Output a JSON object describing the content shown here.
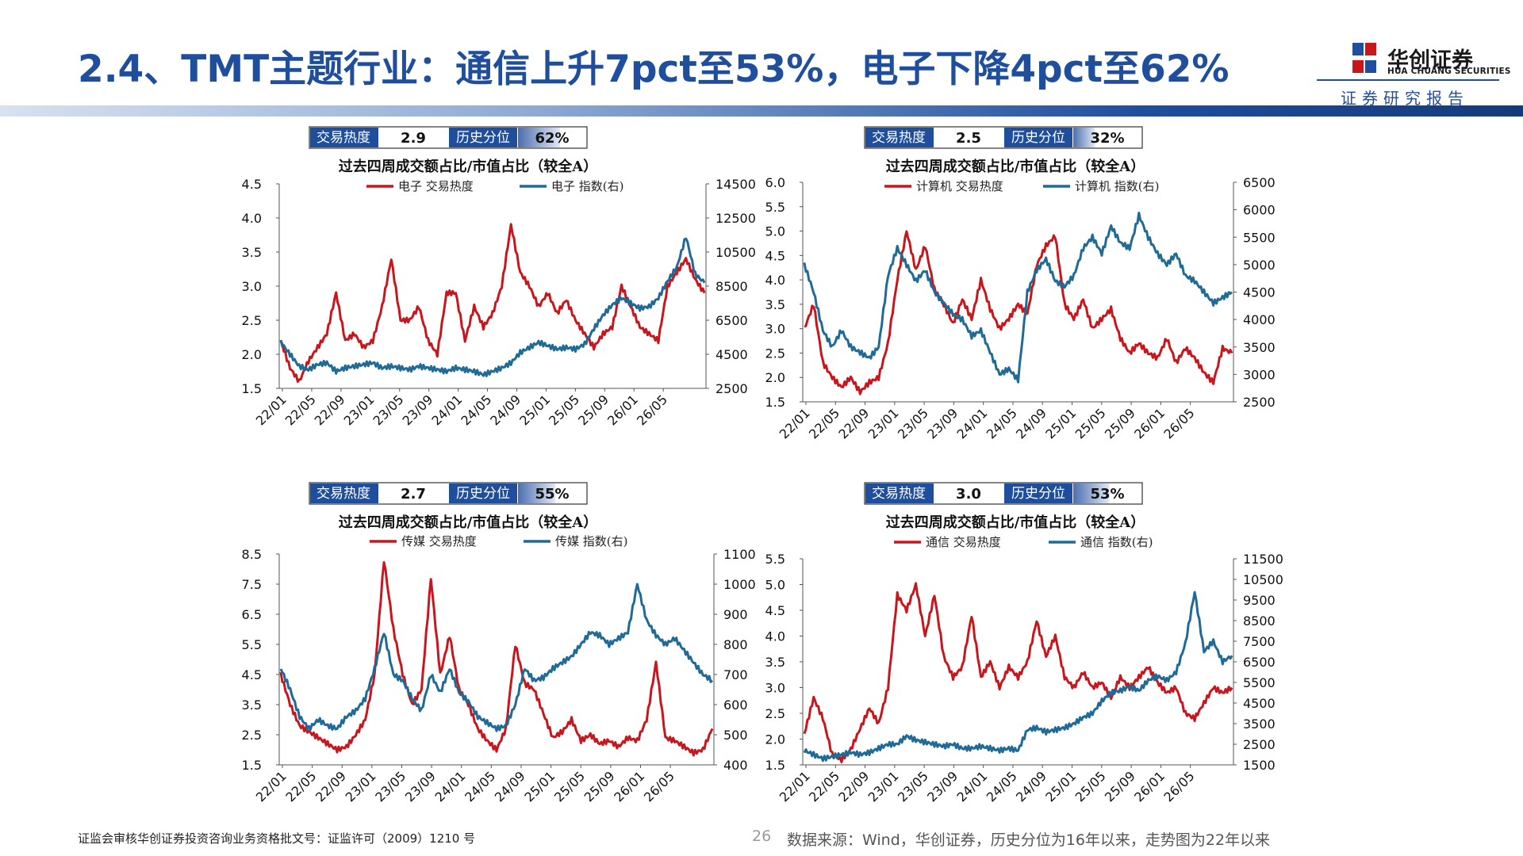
{
  "title": "2.4、TMT主题行业：通信上升7pct至53%，电子下降4pct至62%",
  "brand": {
    "name_cn": "华创证券",
    "name_en": "HUA CHUANG SECURITIES",
    "tagline": "证券研究报告",
    "colors": {
      "primary": "#1f4e9c",
      "accent": "#c8161d"
    }
  },
  "footer": {
    "license": "证监会审核华创证券投资咨询业务资格批文号：证监许可（2009）1210 号",
    "page": "26",
    "source": "数据来源：Wind，华创证券，历史分位为16年以来，走势图为22年以来"
  },
  "colors": {
    "heat_line": "#c8161d",
    "index_line": "#1f6a96",
    "info_box_bg": "#1f4e9c"
  },
  "chart_data": [
    {
      "type": "line",
      "info": {
        "heat_label": "交易热度",
        "heat_value": "2.9",
        "pct_label": "历史分位",
        "pct_value": "62%",
        "pct_fraction": 0.62
      },
      "title": "过去四周成交额占比/市值占比（较全A）",
      "x_ticks": [
        "22/01",
        "22/05",
        "22/09",
        "23/01",
        "23/05",
        "23/09",
        "24/01",
        "24/05",
        "24/09",
        "25/01",
        "25/05",
        "25/09",
        "26/01",
        "26/05"
      ],
      "y_left": {
        "min": 1.5,
        "max": 4.5,
        "ticks": [
          "1.5",
          "2.0",
          "2.5",
          "3.0",
          "3.5",
          "4.0",
          "4.5"
        ]
      },
      "y_right": {
        "min": 2500,
        "max": 14500,
        "ticks": [
          "2500",
          "4500",
          "6500",
          "8500",
          "10500",
          "12500",
          "14500"
        ]
      },
      "series": [
        {
          "name": "电子 交易热度",
          "axis": "left",
          "color": "#c8161d",
          "values": [
            2.2,
            1.8,
            1.6,
            1.9,
            2.1,
            2.3,
            2.9,
            2.2,
            2.3,
            2.1,
            2.2,
            2.7,
            3.4,
            2.5,
            2.5,
            2.7,
            2.2,
            2.0,
            2.9,
            2.9,
            2.2,
            2.7,
            2.4,
            2.6,
            3.0,
            3.9,
            3.2,
            3.0,
            2.7,
            2.9,
            2.6,
            2.8,
            2.5,
            2.3,
            2.1,
            2.3,
            2.4,
            3.0,
            2.7,
            2.4,
            2.3,
            2.2,
            3.0,
            3.2,
            3.4,
            3.1,
            2.9
          ]
        },
        {
          "name": "电子 指数(右)",
          "axis": "right",
          "color": "#1f6a96",
          "values": [
            5200,
            4500,
            3800,
            3600,
            3900,
            4000,
            3500,
            3700,
            3800,
            3900,
            4000,
            3700,
            3800,
            3700,
            3600,
            3800,
            3700,
            3600,
            3500,
            3700,
            3600,
            3500,
            3300,
            3500,
            3700,
            4000,
            4600,
            4900,
            5200,
            5000,
            4800,
            4900,
            4800,
            5100,
            6000,
            6800,
            7400,
            7800,
            7500,
            7200,
            7300,
            7800,
            8800,
            9600,
            11400,
            9200,
            8700
          ]
        }
      ]
    },
    {
      "type": "line",
      "info": {
        "heat_label": "交易热度",
        "heat_value": "2.5",
        "pct_label": "历史分位",
        "pct_value": "32%",
        "pct_fraction": 0.32
      },
      "title": "过去四周成交额占比/市值占比（较全A）",
      "x_ticks": [
        "22/01",
        "22/05",
        "22/09",
        "23/01",
        "23/05",
        "23/09",
        "24/01",
        "24/05",
        "24/09",
        "25/01",
        "25/05",
        "25/09",
        "26/01",
        "26/05"
      ],
      "y_left": {
        "min": 1.5,
        "max": 6.0,
        "ticks": [
          "1.5",
          "2.0",
          "2.5",
          "3.0",
          "3.5",
          "4.0",
          "4.5",
          "5.0",
          "5.5",
          "6.0"
        ]
      },
      "y_right": {
        "min": 2500,
        "max": 6500,
        "ticks": [
          "2500",
          "3000",
          "3500",
          "4000",
          "4500",
          "5000",
          "5500",
          "6000",
          "6500"
        ]
      },
      "series": [
        {
          "name": "计算机 交易热度",
          "axis": "left",
          "color": "#c8161d",
          "values": [
            3.0,
            3.5,
            2.3,
            2.0,
            1.8,
            2.0,
            1.7,
            1.9,
            2.0,
            2.7,
            4.0,
            5.0,
            4.2,
            4.7,
            3.8,
            3.5,
            3.1,
            3.6,
            3.2,
            4.0,
            3.4,
            3.0,
            3.2,
            3.5,
            3.3,
            4.3,
            4.7,
            4.9,
            3.5,
            3.2,
            3.6,
            3.0,
            3.2,
            3.4,
            2.8,
            2.5,
            2.7,
            2.5,
            2.4,
            2.8,
            2.3,
            2.6,
            2.4,
            2.1,
            1.9,
            2.6,
            2.5
          ]
        },
        {
          "name": "计算机 指数(右)",
          "axis": "right",
          "color": "#1f6a96",
          "values": [
            5000,
            4500,
            3800,
            3500,
            3800,
            3500,
            3400,
            3300,
            3500,
            4800,
            5300,
            5000,
            4700,
            4900,
            4500,
            4300,
            4100,
            4000,
            3700,
            3800,
            3400,
            3000,
            3100,
            2900,
            4500,
            4900,
            5100,
            4700,
            4600,
            4800,
            5300,
            5500,
            5200,
            5700,
            5400,
            5300,
            5900,
            5500,
            5200,
            5000,
            5200,
            4800,
            4700,
            4500,
            4300,
            4400,
            4500
          ]
        }
      ]
    },
    {
      "type": "line",
      "info": {
        "heat_label": "交易热度",
        "heat_value": "2.7",
        "pct_label": "历史分位",
        "pct_value": "55%",
        "pct_fraction": 0.55
      },
      "title": "过去四周成交额占比/市值占比（较全A）",
      "x_ticks": [
        "22/01",
        "22/05",
        "22/09",
        "23/01",
        "23/05",
        "23/09",
        "24/01",
        "24/05",
        "24/09",
        "25/01",
        "25/05",
        "25/09",
        "26/01",
        "26/05"
      ],
      "y_left": {
        "min": 1.5,
        "max": 8.5,
        "ticks": [
          "1.5",
          "2.5",
          "3.5",
          "4.5",
          "5.5",
          "6.5",
          "7.5",
          "8.5"
        ]
      },
      "y_right": {
        "min": 400,
        "max": 1100,
        "ticks": [
          "400",
          "500",
          "600",
          "700",
          "800",
          "900",
          "1000",
          "1100"
        ]
      },
      "series": [
        {
          "name": "传媒 交易热度",
          "axis": "left",
          "color": "#c8161d",
          "values": [
            4.5,
            3.5,
            2.8,
            2.6,
            2.4,
            2.2,
            2.0,
            2.1,
            2.5,
            3.0,
            4.5,
            8.3,
            6.0,
            4.5,
            3.5,
            4.0,
            7.7,
            4.5,
            5.8,
            4.0,
            3.5,
            2.7,
            2.3,
            2.0,
            2.7,
            5.5,
            4.2,
            4.0,
            3.2,
            2.4,
            2.6,
            3.0,
            2.3,
            2.5,
            2.2,
            2.3,
            2.1,
            2.4,
            2.3,
            3.0,
            4.9,
            2.4,
            2.3,
            2.1,
            1.9,
            2.0,
            2.7
          ]
        },
        {
          "name": "传媒 指数(右)",
          "axis": "right",
          "color": "#1f6a96",
          "values": [
            720,
            650,
            560,
            520,
            550,
            530,
            520,
            560,
            580,
            620,
            720,
            840,
            700,
            680,
            620,
            580,
            700,
            640,
            720,
            640,
            610,
            560,
            540,
            520,
            530,
            600,
            720,
            680,
            690,
            720,
            740,
            760,
            800,
            840,
            830,
            800,
            820,
            840,
            1000,
            880,
            830,
            800,
            820,
            780,
            740,
            700,
            680
          ]
        }
      ]
    },
    {
      "type": "line",
      "info": {
        "heat_label": "交易热度",
        "heat_value": "3.0",
        "pct_label": "历史分位",
        "pct_value": "53%",
        "pct_fraction": 0.53
      },
      "title": "过去四周成交额占比/市值占比（较全A）",
      "x_ticks": [
        "22/01",
        "22/05",
        "22/09",
        "23/01",
        "23/05",
        "23/09",
        "24/01",
        "24/05",
        "24/09",
        "25/01",
        "25/05",
        "25/09",
        "26/01",
        "26/05"
      ],
      "y_left": {
        "min": 1.5,
        "max": 5.5,
        "ticks": [
          "1.5",
          "2.0",
          "2.5",
          "3.0",
          "3.5",
          "4.0",
          "4.5",
          "5.0",
          "5.5"
        ]
      },
      "y_right": {
        "min": 1500,
        "max": 11500,
        "ticks": [
          "1500",
          "2500",
          "3500",
          "4500",
          "5500",
          "6500",
          "7500",
          "8500",
          "9500",
          "10500",
          "11500"
        ]
      },
      "series": [
        {
          "name": "通信 交易热度",
          "axis": "left",
          "color": "#c8161d",
          "values": [
            2.1,
            2.8,
            2.4,
            1.7,
            1.6,
            1.8,
            2.2,
            2.6,
            2.3,
            3.0,
            4.8,
            4.5,
            5.0,
            4.0,
            4.8,
            3.6,
            3.2,
            3.4,
            4.4,
            3.2,
            3.5,
            3.0,
            3.4,
            3.2,
            3.5,
            4.3,
            3.6,
            4.0,
            3.2,
            3.0,
            3.3,
            3.0,
            3.1,
            2.8,
            3.2,
            3.0,
            3.2,
            3.4,
            3.1,
            2.9,
            3.0,
            2.5,
            2.4,
            2.7,
            3.0,
            2.9,
            3.0
          ]
        },
        {
          "name": "通信 指数(右)",
          "axis": "right",
          "color": "#1f6a96",
          "values": [
            2200,
            2000,
            1800,
            1900,
            2000,
            2100,
            2000,
            2100,
            2300,
            2500,
            2500,
            2900,
            2700,
            2600,
            2500,
            2400,
            2500,
            2300,
            2300,
            2400,
            2300,
            2200,
            2300,
            2200,
            3200,
            3300,
            3100,
            3200,
            3300,
            3500,
            3800,
            4000,
            4600,
            5000,
            5100,
            5300,
            5100,
            5600,
            5800,
            5600,
            6000,
            7400,
            9900,
            7000,
            7500,
            6500,
            6800
          ]
        }
      ]
    }
  ]
}
